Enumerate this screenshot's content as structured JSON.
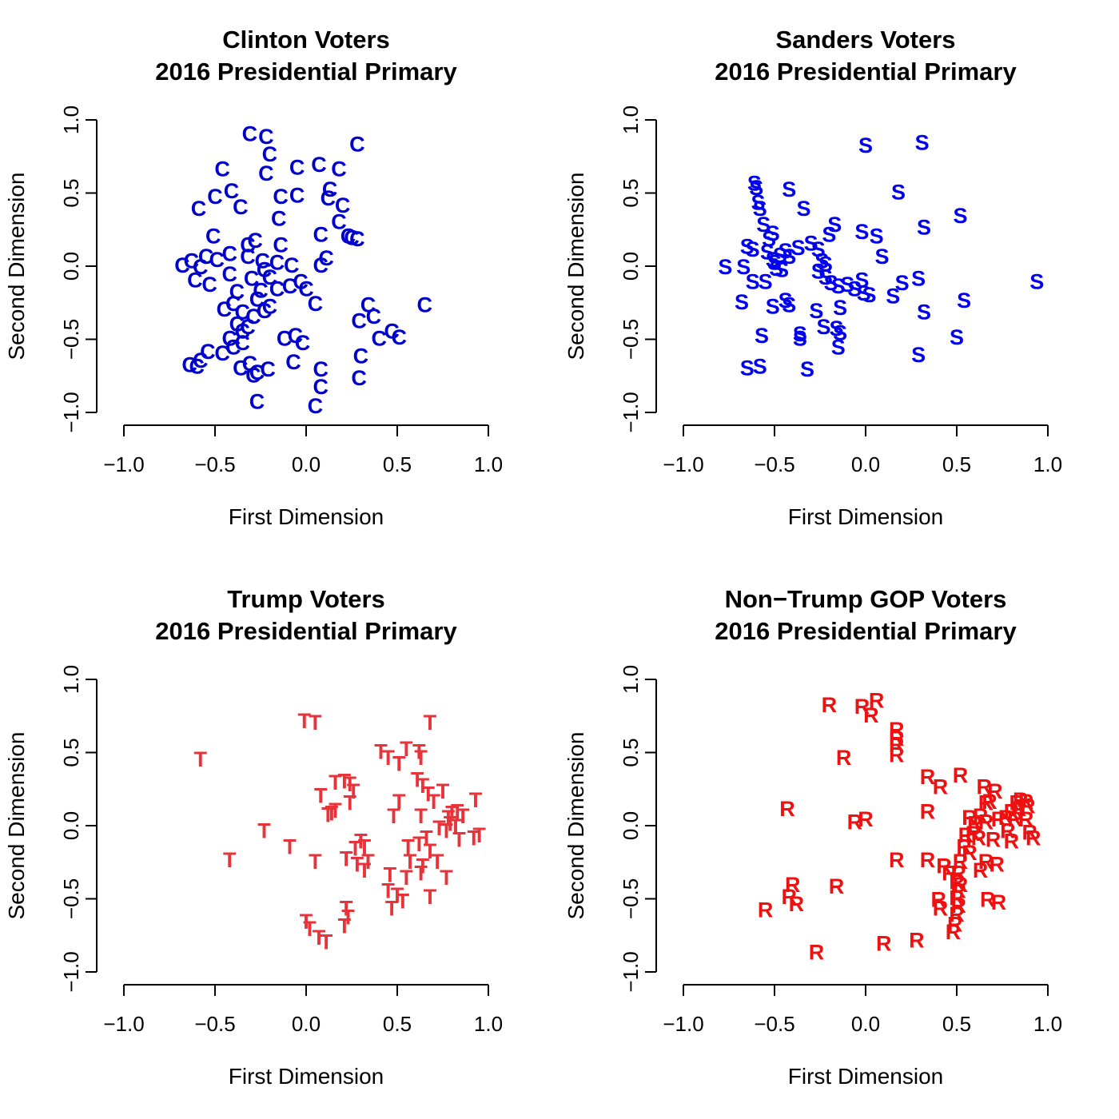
{
  "chart_data": [
    {
      "type": "scatter",
      "title": [
        "Clinton Voters",
        "2016 Presidential Primary"
      ],
      "xlabel": "First Dimension",
      "ylabel": "Second Dimension",
      "xlim": [
        -1.0,
        1.0
      ],
      "ylim": [
        -1.0,
        1.0
      ],
      "xticks": [
        "−1.0",
        "−0.5",
        "0.0",
        "0.5",
        "1.0"
      ],
      "yticks": [
        "−1.0",
        "−0.5",
        "0.0",
        "0.5",
        "1.0"
      ],
      "marker": "C",
      "color": "#0000cc",
      "points": [
        [
          -0.31,
          0.91
        ],
        [
          -0.22,
          0.89
        ],
        [
          -0.2,
          0.77
        ],
        [
          -0.22,
          0.64
        ],
        [
          -0.46,
          0.67
        ],
        [
          -0.05,
          0.68
        ],
        [
          0.07,
          0.7
        ],
        [
          0.18,
          0.67
        ],
        [
          0.28,
          0.84
        ],
        [
          -0.5,
          0.48
        ],
        [
          -0.41,
          0.52
        ],
        [
          -0.36,
          0.41
        ],
        [
          -0.59,
          0.4
        ],
        [
          -0.14,
          0.48
        ],
        [
          -0.05,
          0.49
        ],
        [
          0.13,
          0.53
        ],
        [
          0.12,
          0.47
        ],
        [
          0.2,
          0.42
        ],
        [
          -0.15,
          0.33
        ],
        [
          0.18,
          0.31
        ],
        [
          -0.51,
          0.21
        ],
        [
          -0.28,
          0.18
        ],
        [
          -0.32,
          0.15
        ],
        [
          -0.14,
          0.15
        ],
        [
          0.08,
          0.22
        ],
        [
          0.23,
          0.21
        ],
        [
          0.25,
          0.2
        ],
        [
          0.28,
          0.19
        ],
        [
          -0.68,
          0.01
        ],
        [
          -0.63,
          0.04
        ],
        [
          -0.58,
          0.0
        ],
        [
          -0.55,
          0.07
        ],
        [
          -0.49,
          0.05
        ],
        [
          -0.42,
          0.09
        ],
        [
          -0.32,
          0.07
        ],
        [
          -0.24,
          0.04
        ],
        [
          -0.23,
          -0.02
        ],
        [
          -0.16,
          0.03
        ],
        [
          -0.08,
          0.01
        ],
        [
          0.11,
          0.06
        ],
        [
          0.08,
          0.01
        ],
        [
          -0.61,
          -0.09
        ],
        [
          -0.53,
          -0.12
        ],
        [
          -0.42,
          -0.05
        ],
        [
          -0.3,
          -0.08
        ],
        [
          -0.2,
          -0.07
        ],
        [
          -0.25,
          -0.16
        ],
        [
          -0.16,
          -0.15
        ],
        [
          -0.09,
          -0.13
        ],
        [
          -0.03,
          -0.1
        ],
        [
          0.0,
          -0.15
        ],
        [
          0.05,
          -0.25
        ],
        [
          -0.38,
          -0.17
        ],
        [
          -0.45,
          -0.29
        ],
        [
          -0.4,
          -0.25
        ],
        [
          -0.35,
          -0.31
        ],
        [
          -0.29,
          -0.34
        ],
        [
          -0.27,
          -0.22
        ],
        [
          -0.23,
          -0.3
        ],
        [
          -0.2,
          -0.27
        ],
        [
          -0.38,
          -0.39
        ],
        [
          -0.42,
          -0.49
        ],
        [
          -0.35,
          -0.44
        ],
        [
          -0.32,
          -0.41
        ],
        [
          -0.4,
          -0.55
        ],
        [
          -0.46,
          -0.59
        ],
        [
          -0.35,
          -0.52
        ],
        [
          -0.54,
          -0.58
        ],
        [
          -0.58,
          -0.64
        ],
        [
          -0.6,
          -0.68
        ],
        [
          -0.64,
          -0.67
        ],
        [
          -0.36,
          -0.69
        ],
        [
          -0.31,
          -0.66
        ],
        [
          -0.29,
          -0.74
        ],
        [
          -0.27,
          -0.72
        ],
        [
          -0.21,
          -0.7
        ],
        [
          -0.12,
          -0.49
        ],
        [
          -0.06,
          -0.47
        ],
        [
          -0.02,
          -0.52
        ],
        [
          -0.07,
          -0.65
        ],
        [
          0.08,
          -0.7
        ],
        [
          0.08,
          -0.82
        ],
        [
          0.05,
          -0.95
        ],
        [
          -0.27,
          -0.92
        ],
        [
          0.34,
          -0.26
        ],
        [
          0.37,
          -0.34
        ],
        [
          0.29,
          -0.37
        ],
        [
          0.4,
          -0.49
        ],
        [
          0.47,
          -0.44
        ],
        [
          0.51,
          -0.48
        ],
        [
          0.3,
          -0.61
        ],
        [
          0.29,
          -0.76
        ],
        [
          0.65,
          -0.26
        ]
      ]
    },
    {
      "type": "scatter",
      "title": [
        "Sanders Voters",
        "2016 Presidential Primary"
      ],
      "xlabel": "First Dimension",
      "ylabel": "Second Dimension",
      "xlim": [
        -1.0,
        1.0
      ],
      "ylim": [
        -1.0,
        1.0
      ],
      "xticks": [
        "−1.0",
        "−0.5",
        "0.0",
        "0.5",
        "1.0"
      ],
      "yticks": [
        "−1.0",
        "−0.5",
        "0.0",
        "0.5",
        "1.0"
      ],
      "marker": "S",
      "color": "#0000ee",
      "points": [
        [
          0.0,
          0.83
        ],
        [
          0.31,
          0.85
        ],
        [
          0.18,
          0.51
        ],
        [
          0.52,
          0.35
        ],
        [
          0.32,
          0.27
        ],
        [
          -0.61,
          0.57
        ],
        [
          -0.6,
          0.54
        ],
        [
          -0.59,
          0.44
        ],
        [
          -0.58,
          0.4
        ],
        [
          -0.42,
          0.53
        ],
        [
          -0.34,
          0.4
        ],
        [
          -0.56,
          0.29
        ],
        [
          -0.51,
          0.23
        ],
        [
          -0.53,
          0.19
        ],
        [
          -0.17,
          0.29
        ],
        [
          -0.2,
          0.22
        ],
        [
          -0.02,
          0.24
        ],
        [
          0.06,
          0.21
        ],
        [
          -0.65,
          0.14
        ],
        [
          -0.62,
          0.12
        ],
        [
          -0.54,
          0.1
        ],
        [
          -0.51,
          0.05
        ],
        [
          -0.5,
          0.03
        ],
        [
          -0.47,
          0.08
        ],
        [
          -0.44,
          0.11
        ],
        [
          -0.42,
          0.07
        ],
        [
          -0.37,
          0.13
        ],
        [
          -0.3,
          0.16
        ],
        [
          -0.26,
          0.12
        ],
        [
          -0.24,
          0.04
        ],
        [
          -0.22,
          0.02
        ],
        [
          0.09,
          0.07
        ],
        [
          -0.77,
          0.0
        ],
        [
          -0.67,
          0.0
        ],
        [
          -0.62,
          -0.1
        ],
        [
          -0.55,
          -0.1
        ],
        [
          -0.49,
          -0.01
        ],
        [
          -0.46,
          -0.02
        ],
        [
          -0.26,
          -0.03
        ],
        [
          -0.22,
          -0.07
        ],
        [
          -0.19,
          -0.11
        ],
        [
          -0.15,
          -0.13
        ],
        [
          -0.1,
          -0.12
        ],
        [
          -0.06,
          -0.15
        ],
        [
          -0.02,
          -0.09
        ],
        [
          -0.01,
          -0.18
        ],
        [
          0.02,
          -0.19
        ],
        [
          0.15,
          -0.2
        ],
        [
          0.2,
          -0.11
        ],
        [
          0.29,
          -0.08
        ],
        [
          0.94,
          -0.1
        ],
        [
          -0.68,
          -0.24
        ],
        [
          -0.51,
          -0.27
        ],
        [
          -0.44,
          -0.23
        ],
        [
          -0.42,
          -0.26
        ],
        [
          -0.27,
          -0.3
        ],
        [
          -0.14,
          -0.28
        ],
        [
          0.32,
          -0.31
        ],
        [
          0.54,
          -0.23
        ],
        [
          -0.57,
          -0.47
        ],
        [
          -0.36,
          -0.46
        ],
        [
          -0.36,
          -0.49
        ],
        [
          -0.23,
          -0.41
        ],
        [
          -0.16,
          -0.42
        ],
        [
          -0.14,
          -0.45
        ],
        [
          -0.15,
          -0.55
        ],
        [
          0.5,
          -0.48
        ],
        [
          0.29,
          -0.6
        ],
        [
          -0.65,
          -0.69
        ],
        [
          -0.58,
          -0.68
        ],
        [
          -0.32,
          -0.7
        ]
      ]
    },
    {
      "type": "scatter",
      "title": [
        "Trump Voters",
        "2016 Presidential Primary"
      ],
      "xlabel": "First Dimension",
      "ylabel": "Second Dimension",
      "xlim": [
        -1.0,
        1.0
      ],
      "ylim": [
        -1.0,
        1.0
      ],
      "xticks": [
        "−1.0",
        "−0.5",
        "0.0",
        "0.5",
        "1.0"
      ],
      "yticks": [
        "−1.0",
        "−0.5",
        "0.0",
        "0.5",
        "1.0"
      ],
      "marker": "T",
      "color": "#e8333a",
      "points": [
        [
          -0.01,
          0.72
        ],
        [
          0.05,
          0.71
        ],
        [
          0.68,
          0.71
        ],
        [
          -0.58,
          0.46
        ],
        [
          0.41,
          0.51
        ],
        [
          0.45,
          0.47
        ],
        [
          0.51,
          0.43
        ],
        [
          0.55,
          0.53
        ],
        [
          0.62,
          0.51
        ],
        [
          0.63,
          0.47
        ],
        [
          0.16,
          0.3
        ],
        [
          0.21,
          0.31
        ],
        [
          0.24,
          0.29
        ],
        [
          0.26,
          0.24
        ],
        [
          0.08,
          0.21
        ],
        [
          0.61,
          0.32
        ],
        [
          0.64,
          0.28
        ],
        [
          0.67,
          0.22
        ],
        [
          0.7,
          0.17
        ],
        [
          0.75,
          0.24
        ],
        [
          0.51,
          0.17
        ],
        [
          0.93,
          0.18
        ],
        [
          0.12,
          0.08
        ],
        [
          0.14,
          0.09
        ],
        [
          0.16,
          0.11
        ],
        [
          0.24,
          0.16
        ],
        [
          0.48,
          0.07
        ],
        [
          0.63,
          0.07
        ],
        [
          0.78,
          0.06
        ],
        [
          0.8,
          0.09
        ],
        [
          0.83,
          0.1
        ],
        [
          0.86,
          0.07
        ],
        [
          0.79,
          0.02
        ],
        [
          0.82,
          0.0
        ],
        [
          0.77,
          -0.03
        ],
        [
          -0.23,
          -0.03
        ],
        [
          -0.09,
          -0.14
        ],
        [
          0.3,
          -0.1
        ],
        [
          0.32,
          -0.14
        ],
        [
          0.27,
          -0.15
        ],
        [
          0.56,
          -0.14
        ],
        [
          0.62,
          -0.12
        ],
        [
          0.66,
          -0.08
        ],
        [
          0.73,
          -0.01
        ],
        [
          0.84,
          -0.09
        ],
        [
          0.92,
          -0.08
        ],
        [
          0.95,
          -0.06
        ],
        [
          0.68,
          -0.17
        ],
        [
          -0.42,
          -0.23
        ],
        [
          0.05,
          -0.24
        ],
        [
          0.22,
          -0.22
        ],
        [
          0.28,
          -0.26
        ],
        [
          0.34,
          -0.24
        ],
        [
          0.32,
          -0.3
        ],
        [
          0.57,
          -0.24
        ],
        [
          0.64,
          -0.27
        ],
        [
          0.72,
          -0.24
        ],
        [
          0.46,
          -0.33
        ],
        [
          0.55,
          -0.35
        ],
        [
          0.63,
          -0.32
        ],
        [
          0.77,
          -0.35
        ],
        [
          0.45,
          -0.44
        ],
        [
          0.5,
          -0.47
        ],
        [
          0.47,
          -0.56
        ],
        [
          0.53,
          -0.51
        ],
        [
          0.68,
          -0.48
        ],
        [
          0.22,
          -0.56
        ],
        [
          0.23,
          -0.62
        ],
        [
          0.21,
          -0.68
        ],
        [
          0.0,
          -0.65
        ],
        [
          0.02,
          -0.7
        ],
        [
          0.07,
          -0.76
        ],
        [
          0.11,
          -0.79
        ]
      ]
    },
    {
      "type": "scatter",
      "title": [
        "Non−Trump GOP Voters",
        "2016 Presidential Primary"
      ],
      "xlabel": "First Dimension",
      "ylabel": "Second Dimension",
      "xlim": [
        -1.0,
        1.0
      ],
      "ylim": [
        -1.0,
        1.0
      ],
      "xticks": [
        "−1.0",
        "−0.5",
        "0.0",
        "0.5",
        "1.0"
      ],
      "yticks": [
        "−1.0",
        "−0.5",
        "0.0",
        "0.5",
        "1.0"
      ],
      "marker": "R",
      "color": "#ee1111",
      "points": [
        [
          -0.2,
          0.83
        ],
        [
          -0.02,
          0.82
        ],
        [
          0.06,
          0.86
        ],
        [
          0.03,
          0.76
        ],
        [
          0.17,
          0.66
        ],
        [
          0.17,
          0.6
        ],
        [
          0.17,
          0.56
        ],
        [
          0.17,
          0.49
        ],
        [
          -0.12,
          0.47
        ],
        [
          0.34,
          0.34
        ],
        [
          0.52,
          0.35
        ],
        [
          0.41,
          0.27
        ],
        [
          0.65,
          0.27
        ],
        [
          0.71,
          0.24
        ],
        [
          0.68,
          0.17
        ],
        [
          0.66,
          0.16
        ],
        [
          0.83,
          0.16
        ],
        [
          0.85,
          0.18
        ],
        [
          0.88,
          0.17
        ],
        [
          0.89,
          0.14
        ],
        [
          0.84,
          0.12
        ],
        [
          0.8,
          0.1
        ],
        [
          0.77,
          0.06
        ],
        [
          0.82,
          0.05
        ],
        [
          0.88,
          0.05
        ],
        [
          0.63,
          0.07
        ],
        [
          0.66,
          0.03
        ],
        [
          0.73,
          0.05
        ],
        [
          -0.43,
          0.12
        ],
        [
          0.34,
          0.1
        ],
        [
          -0.06,
          0.03
        ],
        [
          0.0,
          0.05
        ],
        [
          0.57,
          0.06
        ],
        [
          0.6,
          0.02
        ],
        [
          0.55,
          -0.06
        ],
        [
          0.59,
          -0.05
        ],
        [
          0.62,
          -0.08
        ],
        [
          0.7,
          -0.09
        ],
        [
          0.8,
          -0.1
        ],
        [
          0.92,
          -0.08
        ],
        [
          0.9,
          -0.04
        ],
        [
          0.78,
          -0.03
        ],
        [
          0.54,
          -0.14
        ],
        [
          0.57,
          -0.18
        ],
        [
          0.17,
          -0.23
        ],
        [
          0.34,
          -0.23
        ],
        [
          0.43,
          -0.27
        ],
        [
          0.46,
          -0.32
        ],
        [
          0.52,
          -0.24
        ],
        [
          0.51,
          -0.32
        ],
        [
          0.66,
          -0.24
        ],
        [
          0.72,
          -0.26
        ],
        [
          0.63,
          -0.3
        ],
        [
          0.5,
          -0.38
        ],
        [
          0.52,
          -0.4
        ],
        [
          0.51,
          -0.44
        ],
        [
          0.5,
          -0.49
        ],
        [
          -0.4,
          -0.4
        ],
        [
          -0.16,
          -0.41
        ],
        [
          -0.42,
          -0.48
        ],
        [
          -0.38,
          -0.53
        ],
        [
          0.4,
          -0.5
        ],
        [
          0.41,
          -0.56
        ],
        [
          0.51,
          -0.54
        ],
        [
          0.67,
          -0.5
        ],
        [
          0.73,
          -0.52
        ],
        [
          0.5,
          -0.6
        ],
        [
          0.49,
          -0.67
        ],
        [
          0.48,
          -0.72
        ],
        [
          -0.55,
          -0.57
        ],
        [
          0.28,
          -0.78
        ],
        [
          0.1,
          -0.8
        ],
        [
          -0.27,
          -0.86
        ]
      ]
    }
  ]
}
